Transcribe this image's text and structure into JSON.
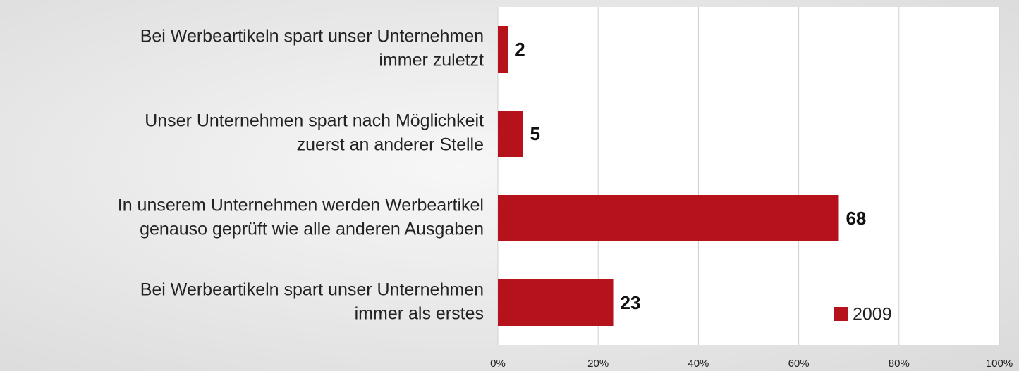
{
  "chart_data": {
    "type": "bar",
    "orientation": "horizontal",
    "categories": [
      [
        "Bei Werbeartikeln spart unser Unternehmen",
        "immer zuletzt"
      ],
      [
        "Unser Unternehmen spart nach Möglichkeit",
        "zuerst an anderer Stelle"
      ],
      [
        "In unserem Unternehmen werden Werbeartikel",
        "genauso geprüft wie alle anderen Ausgaben"
      ],
      [
        "Bei Werbeartikeln spart unser Unternehmen",
        "immer als erstes"
      ]
    ],
    "series": [
      {
        "name": "2009",
        "color": "#b5121b",
        "values": [
          2,
          5,
          68,
          23
        ]
      }
    ],
    "xlim": [
      0,
      100
    ],
    "xticks": [
      {
        "value": 0,
        "label": "0%"
      },
      {
        "value": 20,
        "label": "20%"
      },
      {
        "value": 40,
        "label": "40%"
      },
      {
        "value": 60,
        "label": "60%"
      },
      {
        "value": 80,
        "label": "80%"
      },
      {
        "value": 100,
        "label": "100%"
      }
    ],
    "grid": true,
    "legend": "lower right"
  }
}
